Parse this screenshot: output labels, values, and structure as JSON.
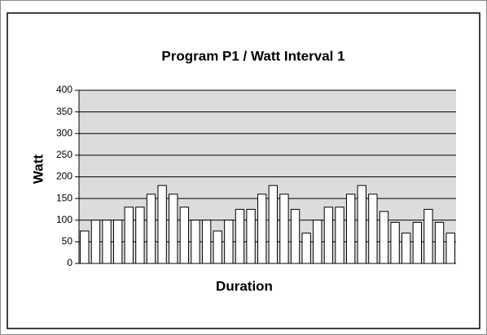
{
  "chart_data": {
    "type": "bar",
    "title": "Program P1 / Watt Interval 1",
    "x_label": "Duration",
    "y_label": "Watt",
    "categories": [
      null,
      null,
      null,
      null,
      null,
      null,
      null,
      null,
      null,
      null,
      null,
      null,
      null,
      null,
      null,
      null,
      null,
      null,
      null,
      null,
      null,
      null,
      null,
      null,
      null,
      null,
      null,
      null,
      null,
      null,
      null,
      null,
      null,
      null
    ],
    "values": [
      75,
      100,
      100,
      100,
      130,
      130,
      160,
      180,
      160,
      130,
      100,
      100,
      75,
      100,
      125,
      125,
      160,
      180,
      160,
      125,
      70,
      100,
      130,
      130,
      160,
      180,
      160,
      120,
      95,
      70,
      95,
      125,
      95,
      70
    ],
    "color": "#ffffff",
    "ylim": [
      0,
      400
    ],
    "yticks": [
      0,
      50,
      100,
      150,
      200,
      250,
      300,
      350,
      400
    ],
    "grid": true
  }
}
